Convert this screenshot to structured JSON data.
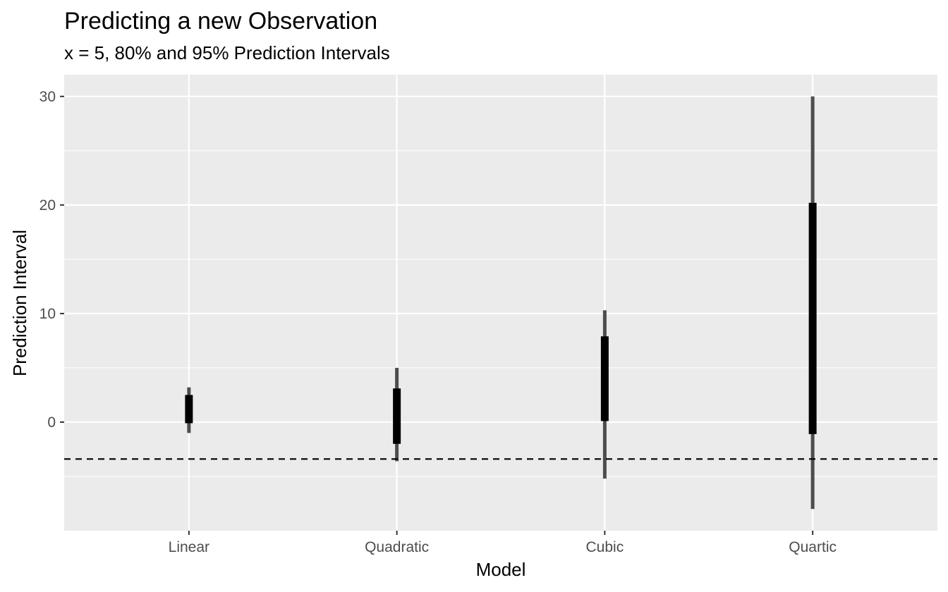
{
  "chart_data": {
    "type": "interval",
    "title": "Predicting a new Observation",
    "subtitle": "x = 5, 80% and 95% Prediction Intervals",
    "xlabel": "Model",
    "ylabel": "Prediction Interval",
    "categories": [
      "Linear",
      "Quadratic",
      "Cubic",
      "Quartic"
    ],
    "ylim": [
      -10,
      32
    ],
    "y_ticks": [
      0,
      10,
      20,
      30
    ],
    "grid": true,
    "legend": "none",
    "series": [
      {
        "name": "95%",
        "color": "#4d4d4d",
        "lower": [
          -1.0,
          -3.6,
          -5.2,
          -8.0
        ],
        "upper": [
          3.2,
          5.0,
          10.3,
          30.0
        ]
      },
      {
        "name": "80%",
        "color": "#000000",
        "lower": [
          -0.1,
          -2.0,
          0.1,
          -1.1
        ],
        "upper": [
          2.5,
          3.1,
          7.9,
          20.2
        ]
      }
    ],
    "reference_line": {
      "y": -3.4,
      "style": "dashed",
      "color": "#000000"
    },
    "colors": {
      "panel_background": "#ebebeb",
      "grid": "#ffffff",
      "tick_text": "#4d4d4d"
    }
  }
}
